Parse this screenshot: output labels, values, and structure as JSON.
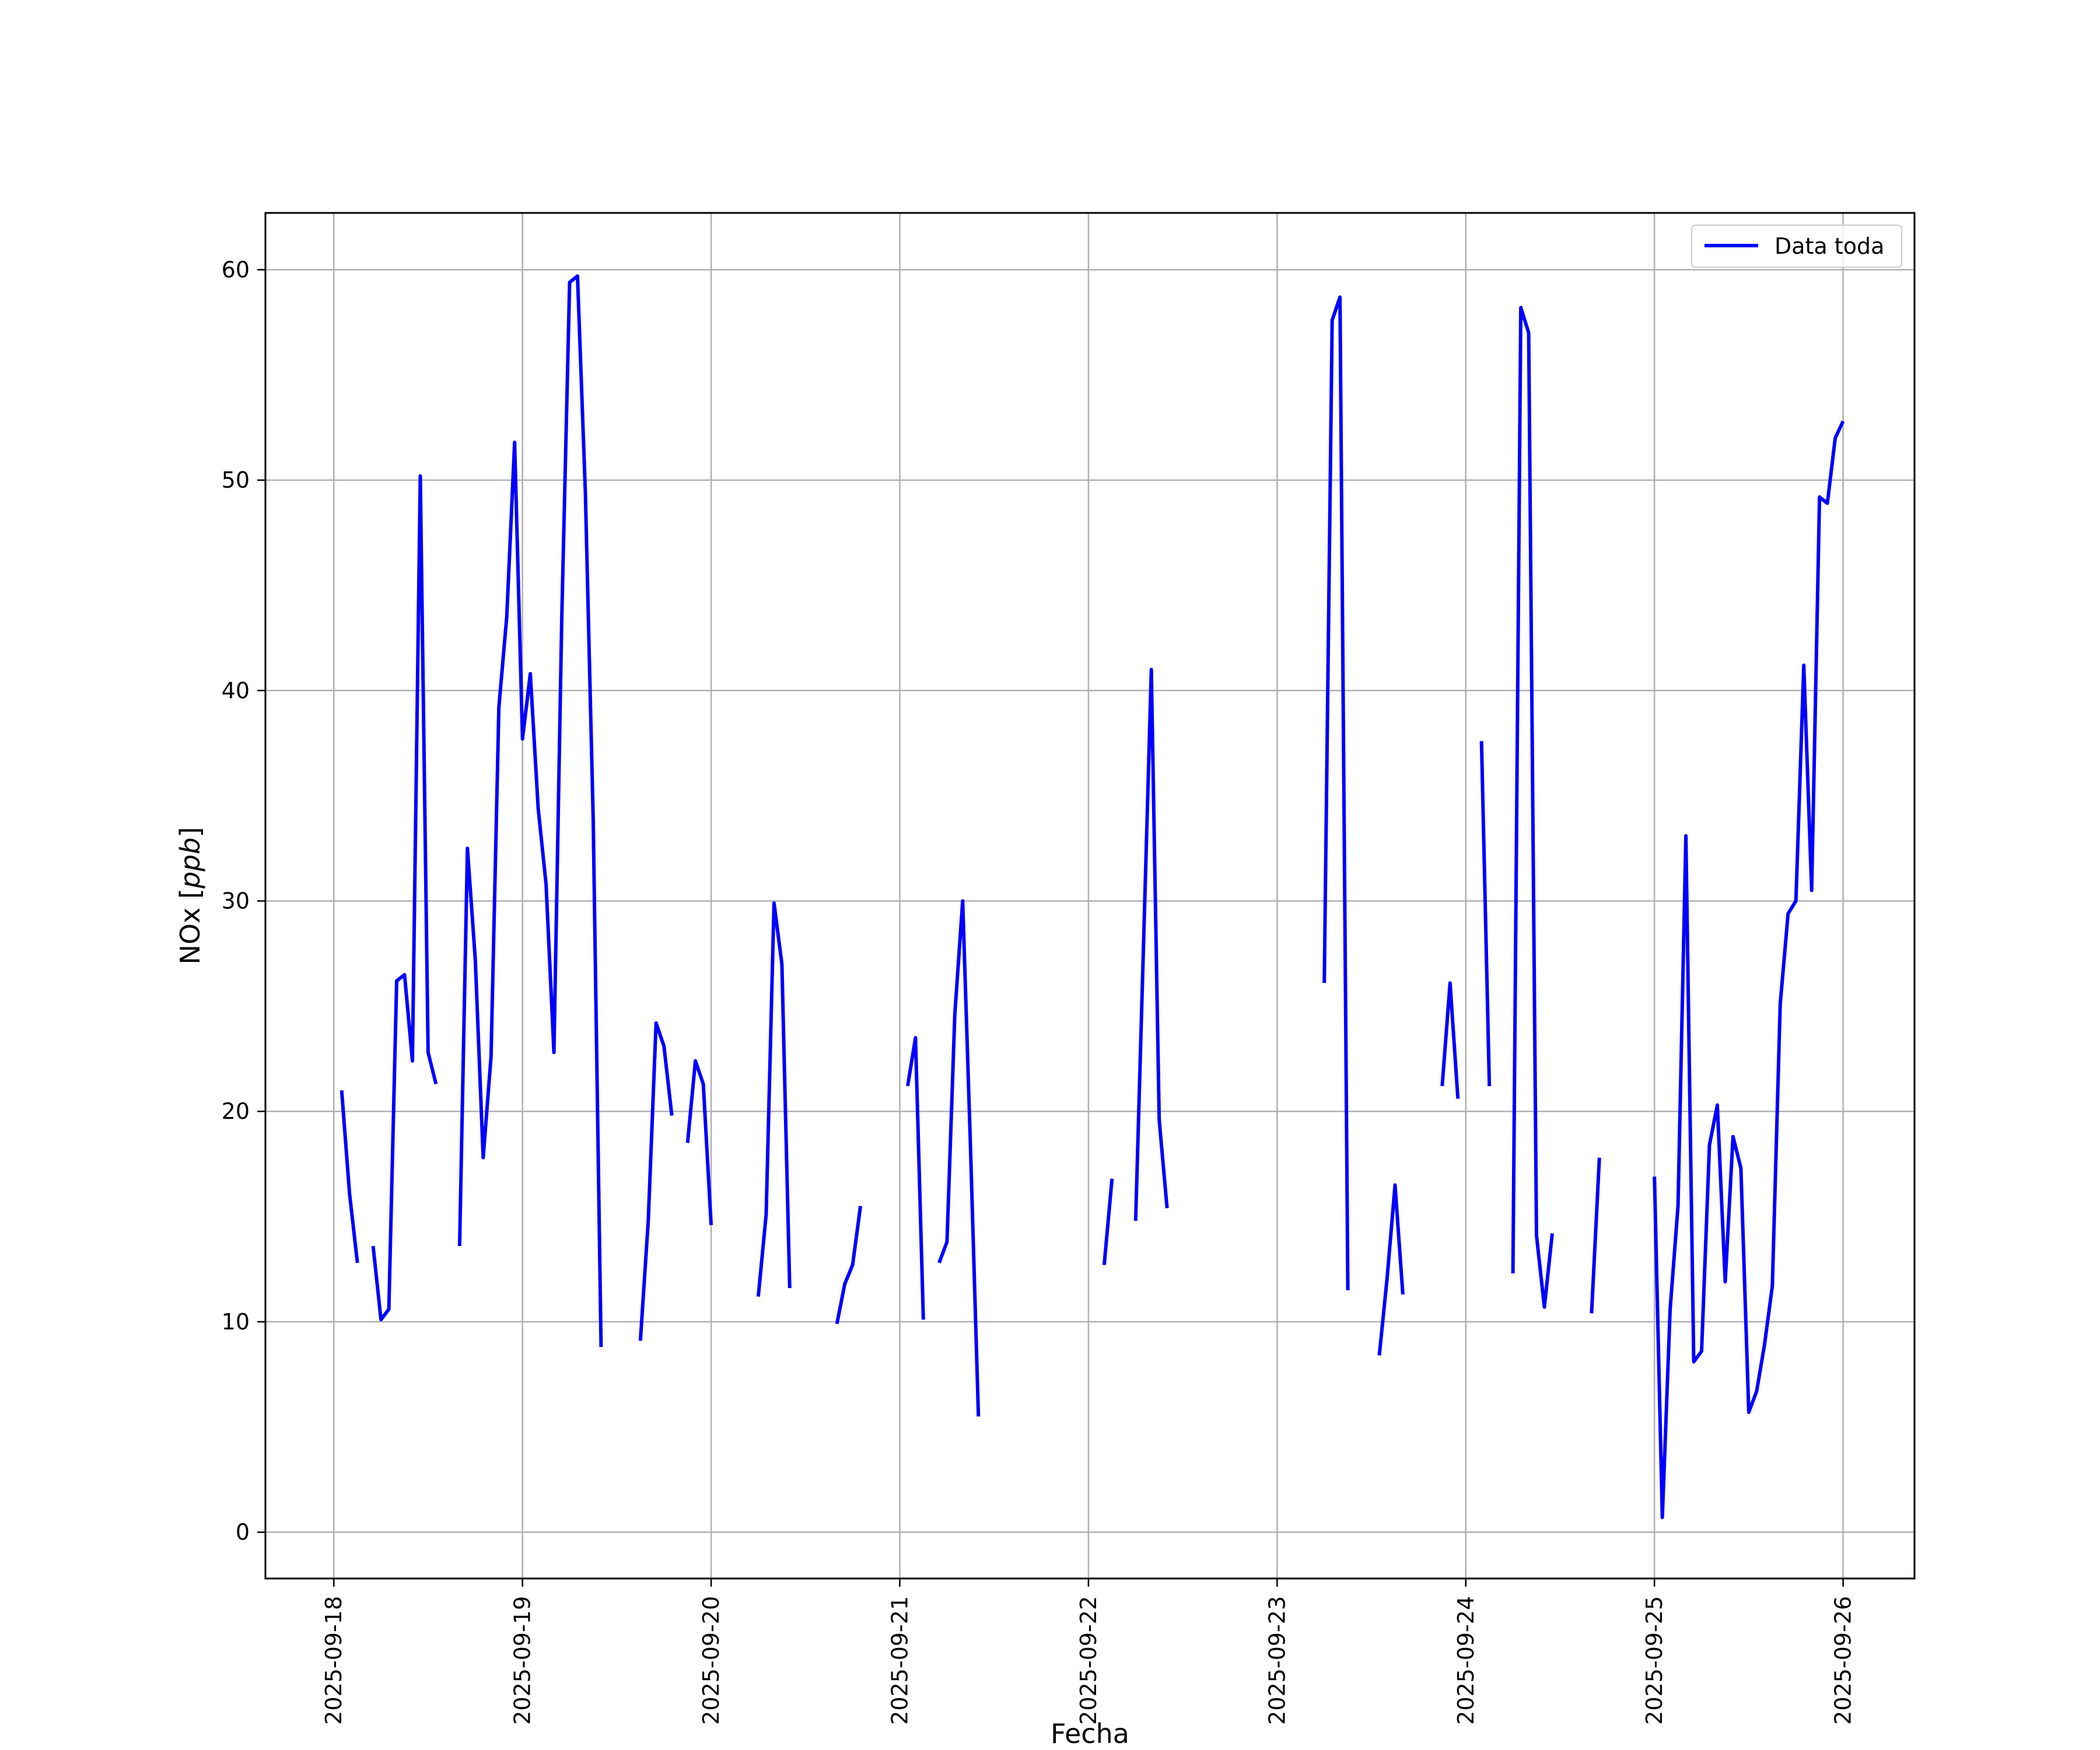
{
  "chart_data": {
    "type": "line",
    "xlabel": "Fecha",
    "ylabel_prefix": "NOx [",
    "ylabel_unit": "ppb",
    "ylabel_suffix": "]",
    "x_ticks": [
      "2025-09-18",
      "2025-09-19",
      "2025-09-20",
      "2025-09-21",
      "2025-09-22",
      "2025-09-23",
      "2025-09-24",
      "2025-09-25",
      "2025-09-26"
    ],
    "y_ticks": [
      "0",
      "10",
      "20",
      "30",
      "40",
      "50",
      "60"
    ],
    "ylim": [
      -2.2,
      62.7
    ],
    "xlim": [
      "2025-09-17T15:18",
      "2025-09-26T09:05"
    ],
    "grid": true,
    "legend_position": "top-right",
    "series": [
      {
        "name": "Data toda",
        "color": "#0000ff",
        "segments": [
          [
            [
              "2025-09-18T01:00",
              21.0
            ],
            [
              "2025-09-18T02:00",
              16.1
            ],
            [
              "2025-09-18T03:00",
              12.8
            ]
          ],
          [
            [
              "2025-09-18T05:00",
              13.6
            ],
            [
              "2025-09-18T06:00",
              10.1
            ],
            [
              "2025-09-18T07:00",
              10.6
            ],
            [
              "2025-09-18T08:00",
              26.2
            ],
            [
              "2025-09-18T09:00",
              26.5
            ],
            [
              "2025-09-18T10:00",
              22.4
            ],
            [
              "2025-09-18T11:00",
              50.2
            ],
            [
              "2025-09-18T12:00",
              22.8
            ],
            [
              "2025-09-18T13:00",
              21.3
            ]
          ],
          [
            [
              "2025-09-18T16:00",
              13.6
            ],
            [
              "2025-09-18T17:00",
              32.5
            ],
            [
              "2025-09-18T18:00",
              27.2
            ],
            [
              "2025-09-18T19:00",
              17.8
            ],
            [
              "2025-09-18T20:00",
              22.6
            ],
            [
              "2025-09-18T21:00",
              39.2
            ],
            [
              "2025-09-18T22:00",
              43.5
            ],
            [
              "2025-09-18T23:00",
              51.8
            ],
            [
              "2025-09-19T00:00",
              37.7
            ],
            [
              "2025-09-19T01:00",
              40.8
            ],
            [
              "2025-09-19T02:00",
              34.4
            ],
            [
              "2025-09-19T03:00",
              30.8
            ],
            [
              "2025-09-19T04:00",
              22.8
            ],
            [
              "2025-09-19T05:00",
              43.4
            ],
            [
              "2025-09-19T06:00",
              59.4
            ],
            [
              "2025-09-19T07:00",
              59.7
            ],
            [
              "2025-09-19T08:00",
              49.4
            ],
            [
              "2025-09-19T09:00",
              33.9
            ],
            [
              "2025-09-19T10:00",
              8.8
            ]
          ],
          [
            [
              "2025-09-19T15:00",
              9.1
            ],
            [
              "2025-09-19T16:00",
              14.8
            ],
            [
              "2025-09-19T17:00",
              24.2
            ],
            [
              "2025-09-19T18:00",
              23.1
            ],
            [
              "2025-09-19T19:00",
              19.8
            ]
          ],
          [
            [
              "2025-09-19T21:00",
              18.5
            ],
            [
              "2025-09-19T22:00",
              22.4
            ],
            [
              "2025-09-19T23:00",
              21.3
            ],
            [
              "2025-09-20T00:00",
              14.6
            ]
          ],
          [
            [
              "2025-09-20T06:00",
              11.2
            ],
            [
              "2025-09-20T07:00",
              15.1
            ],
            [
              "2025-09-20T08:00",
              29.9
            ],
            [
              "2025-09-20T09:00",
              27.0
            ],
            [
              "2025-09-20T10:00",
              11.6
            ]
          ],
          [
            [
              "2025-09-20T16:00",
              9.9
            ],
            [
              "2025-09-20T17:00",
              11.8
            ],
            [
              "2025-09-20T18:00",
              12.7
            ],
            [
              "2025-09-20T19:00",
              15.5
            ]
          ],
          [
            [
              "2025-09-21T01:00",
              21.2
            ],
            [
              "2025-09-21T02:00",
              23.5
            ],
            [
              "2025-09-21T03:00",
              10.1
            ]
          ],
          [
            [
              "2025-09-21T05:00",
              12.8
            ],
            [
              "2025-09-21T06:00",
              13.8
            ],
            [
              "2025-09-21T07:00",
              24.6
            ],
            [
              "2025-09-21T08:00",
              30.0
            ],
            [
              "2025-09-21T09:00",
              18.2
            ],
            [
              "2025-09-21T10:00",
              5.5
            ]
          ],
          [
            [
              "2025-09-22T02:00",
              12.7
            ],
            [
              "2025-09-22T03:00",
              16.8
            ]
          ],
          [
            [
              "2025-09-22T06:00",
              14.8
            ],
            [
              "2025-09-22T07:00",
              27.8
            ],
            [
              "2025-09-22T08:00",
              41.0
            ],
            [
              "2025-09-22T09:00",
              19.6
            ],
            [
              "2025-09-22T10:00",
              15.4
            ]
          ],
          [
            [
              "2025-09-23T06:00",
              26.1
            ],
            [
              "2025-09-23T07:00",
              57.6
            ],
            [
              "2025-09-23T08:00",
              58.7
            ],
            [
              "2025-09-23T09:00",
              11.5
            ]
          ],
          [
            [
              "2025-09-23T13:00",
              8.4
            ],
            [
              "2025-09-23T14:00",
              12.1
            ],
            [
              "2025-09-23T15:00",
              16.5
            ],
            [
              "2025-09-23T16:00",
              11.3
            ]
          ],
          [
            [
              "2025-09-23T21:00",
              21.2
            ],
            [
              "2025-09-23T22:00",
              26.1
            ],
            [
              "2025-09-23T23:00",
              20.6
            ]
          ],
          [
            [
              "2025-09-24T02:00",
              37.6
            ],
            [
              "2025-09-24T03:00",
              21.2
            ]
          ],
          [
            [
              "2025-09-24T06:00",
              12.3
            ],
            [
              "2025-09-24T07:00",
              58.2
            ],
            [
              "2025-09-24T08:00",
              57.0
            ],
            [
              "2025-09-24T09:00",
              14.1
            ],
            [
              "2025-09-24T10:00",
              10.7
            ],
            [
              "2025-09-24T11:00",
              14.2
            ]
          ],
          [
            [
              "2025-09-24T16:00",
              10.4
            ],
            [
              "2025-09-24T17:00",
              17.8
            ]
          ],
          [
            [
              "2025-09-25T00:00",
              16.9
            ],
            [
              "2025-09-25T01:00",
              0.7
            ],
            [
              "2025-09-25T02:00",
              10.6
            ],
            [
              "2025-09-25T03:00",
              15.5
            ],
            [
              "2025-09-25T04:00",
              33.1
            ],
            [
              "2025-09-25T05:00",
              8.1
            ],
            [
              "2025-09-25T06:00",
              8.6
            ],
            [
              "2025-09-25T07:00",
              18.4
            ],
            [
              "2025-09-25T08:00",
              20.3
            ],
            [
              "2025-09-25T09:00",
              11.9
            ],
            [
              "2025-09-25T10:00",
              18.8
            ],
            [
              "2025-09-25T11:00",
              17.3
            ],
            [
              "2025-09-25T12:00",
              5.7
            ],
            [
              "2025-09-25T13:00",
              6.7
            ],
            [
              "2025-09-25T14:00",
              8.9
            ],
            [
              "2025-09-25T15:00",
              11.7
            ],
            [
              "2025-09-25T16:00",
              25.1
            ],
            [
              "2025-09-25T17:00",
              29.4
            ],
            [
              "2025-09-25T18:00",
              30.0
            ],
            [
              "2025-09-25T19:00",
              41.2
            ],
            [
              "2025-09-25T20:00",
              30.5
            ],
            [
              "2025-09-25T21:00",
              49.2
            ],
            [
              "2025-09-25T22:00",
              48.9
            ],
            [
              "2025-09-25T23:00",
              52.0
            ],
            [
              "2025-09-26T00:00",
              52.8
            ]
          ]
        ]
      }
    ]
  }
}
